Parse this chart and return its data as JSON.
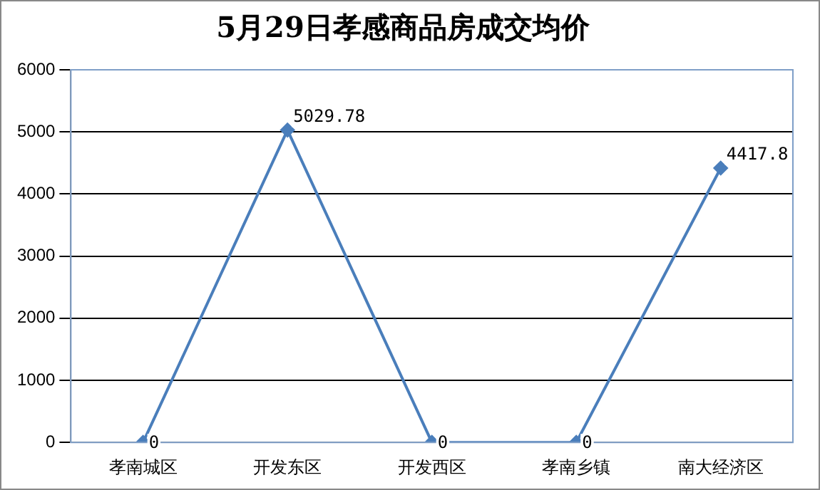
{
  "chart_data": {
    "type": "line",
    "title": "5月29日孝感商品房成交均价",
    "categories": [
      "孝南城区",
      "开发东区",
      "开发西区",
      "孝南乡镇",
      "南大经济区"
    ],
    "series": [
      {
        "color": "#4a7ebb",
        "values": [
          0,
          5029.78,
          0,
          0,
          4417.8
        ]
      }
    ],
    "ylim": [
      0,
      6000
    ],
    "yticks": [
      0,
      1000,
      2000,
      3000,
      4000,
      5000,
      6000
    ],
    "grid": "y",
    "legend": false,
    "marker": "diamond",
    "line_style": "solid",
    "data_labels": true
  }
}
